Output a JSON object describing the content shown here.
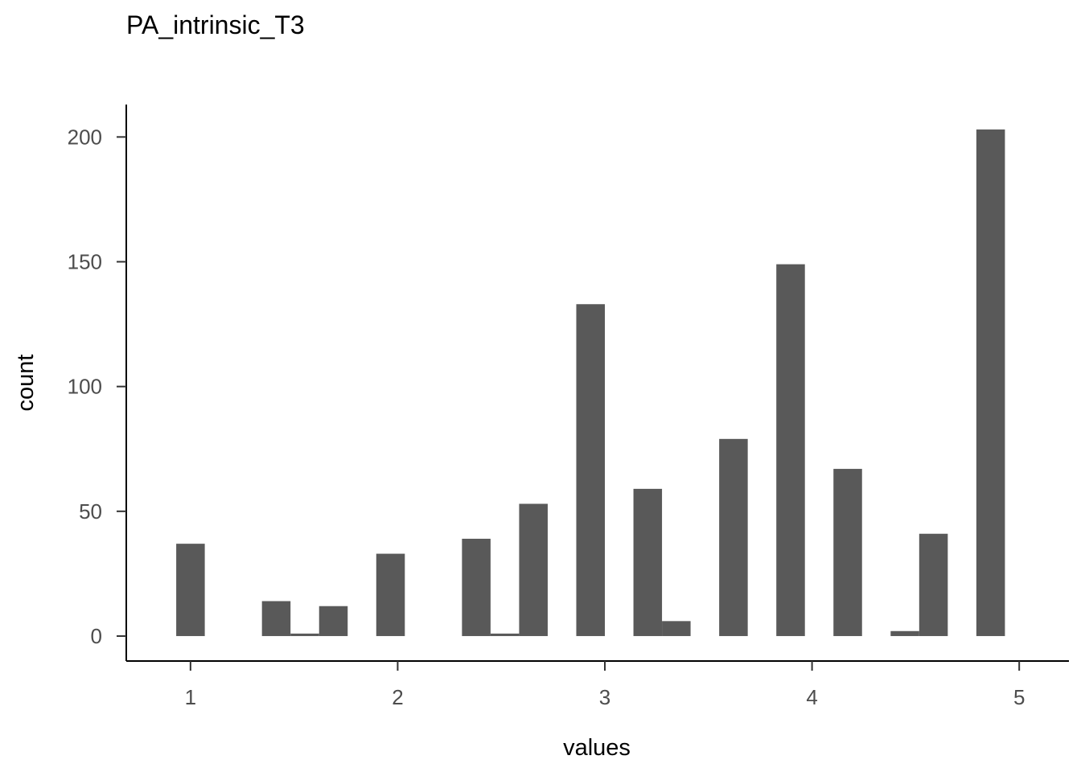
{
  "chart_data": {
    "type": "bar",
    "title": "PA_intrinsic_T3",
    "xlabel": "values",
    "ylabel": "count",
    "xlim": [
      0.69,
      5.24
    ],
    "ylim": [
      -10,
      213
    ],
    "x_ticks": [
      1,
      2,
      3,
      4,
      5
    ],
    "y_ticks": [
      0,
      50,
      100,
      150,
      200
    ],
    "grid": false,
    "bar_color": "#595959",
    "bin_width": 0.1379,
    "bars": [
      {
        "x": 1.0,
        "value": 37
      },
      {
        "x": 1.1379,
        "value": 0
      },
      {
        "x": 1.2759,
        "value": 0
      },
      {
        "x": 1.4138,
        "value": 14
      },
      {
        "x": 1.5517,
        "value": 1
      },
      {
        "x": 1.6897,
        "value": 12
      },
      {
        "x": 1.8276,
        "value": 0
      },
      {
        "x": 1.9655,
        "value": 33
      },
      {
        "x": 2.1034,
        "value": 0
      },
      {
        "x": 2.2414,
        "value": 0
      },
      {
        "x": 2.3793,
        "value": 39
      },
      {
        "x": 2.5172,
        "value": 1
      },
      {
        "x": 2.6552,
        "value": 53
      },
      {
        "x": 2.7931,
        "value": 0
      },
      {
        "x": 2.931,
        "value": 133
      },
      {
        "x": 3.069,
        "value": 0
      },
      {
        "x": 3.2069,
        "value": 59
      },
      {
        "x": 3.3448,
        "value": 6
      },
      {
        "x": 3.4828,
        "value": 0
      },
      {
        "x": 3.6207,
        "value": 79
      },
      {
        "x": 3.7586,
        "value": 0
      },
      {
        "x": 3.8966,
        "value": 149
      },
      {
        "x": 4.0345,
        "value": 0
      },
      {
        "x": 4.1724,
        "value": 67
      },
      {
        "x": 4.3103,
        "value": 0
      },
      {
        "x": 4.4483,
        "value": 2
      },
      {
        "x": 4.5862,
        "value": 41
      },
      {
        "x": 4.7241,
        "value": 0
      },
      {
        "x": 4.8621,
        "value": 203
      }
    ]
  }
}
